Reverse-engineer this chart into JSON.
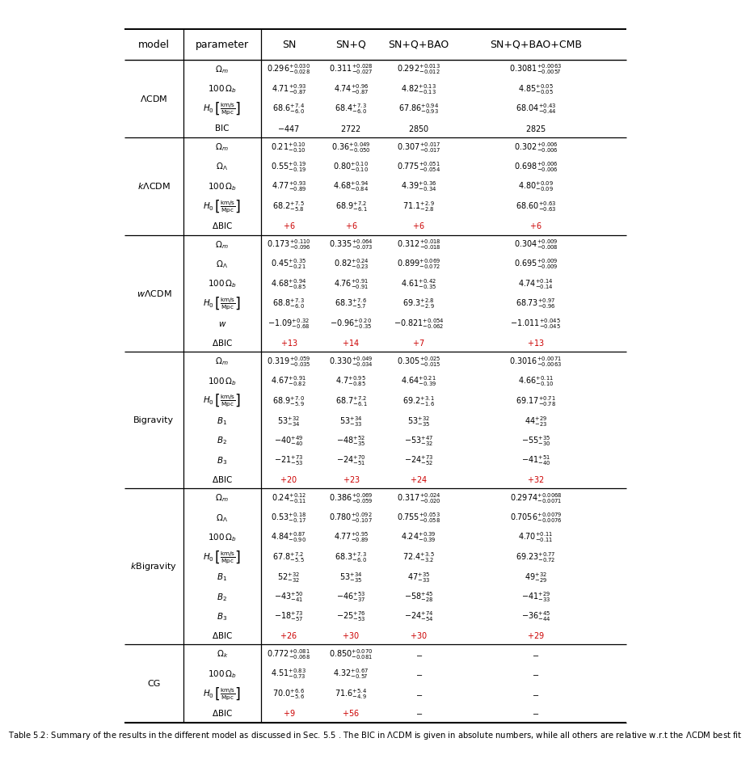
{
  "col_headers": [
    "model",
    "parameter",
    "SN",
    "SN+Q",
    "SN+Q+BAO",
    "SN+Q+BAO+CMB"
  ],
  "sections": [
    {
      "model": "$\\Lambda$CDM",
      "rows": [
        {
          "param": "$\\Omega_m$",
          "sn": "$0.296^{+0.030}_{-0.028}$",
          "snq": "$0.311^{+0.028}_{-0.027}$",
          "snqbao": "$0.292^{+0.013}_{-0.012}$",
          "snqbaocmb": "$0.3081^{+0.0063}_{-0.0057}$",
          "color": "black"
        },
        {
          "param": "$100\\,\\Omega_b$",
          "sn": "$4.71^{+0.93}_{-0.87}$",
          "snq": "$4.74^{+0.96}_{-0.87}$",
          "snqbao": "$4.82^{+0.13}_{-0.13}$",
          "snqbaocmb": "$4.85^{+0.05}_{-0.05}$",
          "color": "black"
        },
        {
          "param": "$H_0\\,\\left[\\frac{\\mathrm{km/s}}{\\mathrm{Mpc}}\\right]$",
          "sn": "$68.6^{+7.4}_{-6.0}$",
          "snq": "$68.4^{+7.3}_{-6.0}$",
          "snqbao": "$67.86^{+0.94}_{-0.93}$",
          "snqbaocmb": "$68.04^{+0.43}_{-0.44}$",
          "color": "black"
        },
        {
          "param": "BIC",
          "sn": "$-447$",
          "snq": "$2722$",
          "snqbao": "$2850$",
          "snqbaocmb": "$2825$",
          "color": "black",
          "plain": true
        }
      ]
    },
    {
      "model": "$k\\Lambda$CDM",
      "rows": [
        {
          "param": "$\\Omega_m$",
          "sn": "$0.21^{+0.10}_{-0.10}$",
          "snq": "$0.36^{+0.049}_{-0.050}$",
          "snqbao": "$0.307^{+0.017}_{-0.017}$",
          "snqbaocmb": "$0.302^{+0.006}_{-0.006}$",
          "color": "black"
        },
        {
          "param": "$\\Omega_\\Lambda$",
          "sn": "$0.55^{+0.19}_{-0.19}$",
          "snq": "$0.80^{+0.10}_{-0.10}$",
          "snqbao": "$0.775^{+0.051}_{-0.054}$",
          "snqbaocmb": "$0.698^{+0.006}_{-0.006}$",
          "color": "black"
        },
        {
          "param": "$100\\,\\Omega_b$",
          "sn": "$4.77^{+0.93}_{-0.89}$",
          "snq": "$4.68^{+0.94}_{-0.84}$",
          "snqbao": "$4.39^{+0.36}_{-0.34}$",
          "snqbaocmb": "$4.80^{+0.09}_{-0.09}$",
          "color": "black"
        },
        {
          "param": "$H_0\\,\\left[\\frac{\\mathrm{km/s}}{\\mathrm{Mpc}}\\right]$",
          "sn": "$68.2^{+7.5}_{-5.8}$",
          "snq": "$68.9^{+7.2}_{-6.1}$",
          "snqbao": "$71.1^{+2.9}_{-2.8}$",
          "snqbaocmb": "$68.60^{+0.63}_{-0.63}$",
          "color": "black"
        },
        {
          "param": "$\\Delta$BIC",
          "sn": "$+6$",
          "snq": "$+6$",
          "snqbao": "$+6$",
          "snqbaocmb": "$+6$",
          "color": "red",
          "plain": true
        }
      ]
    },
    {
      "model": "$w\\Lambda$CDM",
      "rows": [
        {
          "param": "$\\Omega_m$",
          "sn": "$0.173^{+0.110}_{-0.096}$",
          "snq": "$0.335^{+0.064}_{-0.073}$",
          "snqbao": "$0.312^{+0.018}_{-0.018}$",
          "snqbaocmb": "$0.304^{+0.009}_{-0.008}$",
          "color": "black"
        },
        {
          "param": "$\\Omega_\\Lambda$",
          "sn": "$0.45^{+0.35}_{-0.21}$",
          "snq": "$0.82^{+0.24}_{-0.23}$",
          "snqbao": "$0.899^{+0.069}_{-0.072}$",
          "snqbaocmb": "$0.695^{+0.009}_{-0.009}$",
          "color": "black"
        },
        {
          "param": "$100\\,\\Omega_b$",
          "sn": "$4.68^{+0.94}_{-0.85}$",
          "snq": "$4.76^{+0.91}_{-0.91}$",
          "snqbao": "$4.61^{+0.42}_{-0.35}$",
          "snqbaocmb": "$4.74^{+0.14}_{-0.14}$",
          "color": "black"
        },
        {
          "param": "$H_0\\,\\left[\\frac{\\mathrm{km/s}}{\\mathrm{Mpc}}\\right]$",
          "sn": "$68.8^{+7.3}_{-6.0}$",
          "snq": "$68.3^{+7.6}_{-5.7}$",
          "snqbao": "$69.3^{+2.8}_{-2.9}$",
          "snqbaocmb": "$68.73^{+0.97}_{-0.96}$",
          "color": "black"
        },
        {
          "param": "$w$",
          "sn": "$-1.09^{+0.32}_{-0.68}$",
          "snq": "$-0.96^{+0.20}_{-0.35}$",
          "snqbao": "$-0.821^{+0.054}_{-0.062}$",
          "snqbaocmb": "$-1.011^{+0.045}_{-0.045}$",
          "color": "black"
        },
        {
          "param": "$\\Delta$BIC",
          "sn": "$+13$",
          "snq": "$+14$",
          "snqbao": "$+7$",
          "snqbaocmb": "$+13$",
          "color": "red",
          "plain": true
        }
      ]
    },
    {
      "model": "Bigravity",
      "rows": [
        {
          "param": "$\\Omega_m$",
          "sn": "$0.319^{+0.059}_{-0.035}$",
          "snq": "$0.330^{+0.049}_{-0.034}$",
          "snqbao": "$0.305^{+0.025}_{-0.015}$",
          "snqbaocmb": "$0.3016^{+0.0071}_{-0.0063}$",
          "color": "black"
        },
        {
          "param": "$100\\,\\Omega_b$",
          "sn": "$4.67^{+0.91}_{-0.82}$",
          "snq": "$4.7^{+0.95}_{-0.85}$",
          "snqbao": "$4.64^{+0.21}_{-0.39}$",
          "snqbaocmb": "$4.66^{+0.11}_{-0.10}$",
          "color": "black"
        },
        {
          "param": "$H_0\\,\\left[\\frac{\\mathrm{km/s}}{\\mathrm{Mpc}}\\right]$",
          "sn": "$68.9^{+7.0}_{-5.9}$",
          "snq": "$68.7^{+7.2}_{-6.1}$",
          "snqbao": "$69.2^{+3.1}_{-1.6}$",
          "snqbaocmb": "$69.17^{+0.71}_{-0.78}$",
          "color": "black"
        },
        {
          "param": "$B_1$",
          "sn": "$53^{+32}_{-34}$",
          "snq": "$53^{+34}_{-33}$",
          "snqbao": "$53^{+32}_{-35}$",
          "snqbaocmb": "$44^{+29}_{-23}$",
          "color": "black"
        },
        {
          "param": "$B_2$",
          "sn": "$-40^{+49}_{-40}$",
          "snq": "$-48^{+52}_{-35}$",
          "snqbao": "$-53^{+47}_{-32}$",
          "snqbaocmb": "$-55^{+35}_{-30}$",
          "color": "black"
        },
        {
          "param": "$B_3$",
          "sn": "$-21^{+73}_{-53}$",
          "snq": "$-24^{+70}_{-51}$",
          "snqbao": "$-24^{+73}_{-52}$",
          "snqbaocmb": "$-41^{+51}_{-40}$",
          "color": "black"
        },
        {
          "param": "$\\Delta$BIC",
          "sn": "$+20$",
          "snq": "$+23$",
          "snqbao": "$+24$",
          "snqbaocmb": "$+32$",
          "color": "red",
          "plain": true
        }
      ]
    },
    {
      "model": "$k$Bigravity",
      "rows": [
        {
          "param": "$\\Omega_m$",
          "sn": "$0.24^{+0.12}_{-0.11}$",
          "snq": "$0.386^{+0.069}_{-0.059}$",
          "snqbao": "$0.317^{+0.024}_{-0.020}$",
          "snqbaocmb": "$0.2974^{+0.0068}_{-0.0071}$",
          "color": "black"
        },
        {
          "param": "$\\Omega_\\Lambda$",
          "sn": "$0.53^{+0.18}_{-0.17}$",
          "snq": "$0.780^{+0.092}_{-0.107}$",
          "snqbao": "$0.755^{+0.053}_{-0.058}$",
          "snqbaocmb": "$0.7056^{+0.0079}_{-0.0076}$",
          "color": "black"
        },
        {
          "param": "$100\\,\\Omega_b$",
          "sn": "$4.84^{+0.87}_{-0.90}$",
          "snq": "$4.77^{+0.95}_{-0.89}$",
          "snqbao": "$4.24^{+0.39}_{-0.39}$",
          "snqbaocmb": "$4.70^{+0.11}_{-0.11}$",
          "color": "black"
        },
        {
          "param": "$H_0\\,\\left[\\frac{\\mathrm{km/s}}{\\mathrm{Mpc}}\\right]$",
          "sn": "$67.8^{+7.2}_{-5.5}$",
          "snq": "$68.3^{+7.3}_{-6.0}$",
          "snqbao": "$72.4^{+3.5}_{-3.2}$",
          "snqbaocmb": "$69.23^{+0.77}_{-0.72}$",
          "color": "black"
        },
        {
          "param": "$B_1$",
          "sn": "$52^{+32}_{-32}$",
          "snq": "$53^{+34}_{-35}$",
          "snqbao": "$47^{+35}_{-33}$",
          "snqbaocmb": "$49^{+32}_{-29}$",
          "color": "black"
        },
        {
          "param": "$B_2$",
          "sn": "$-43^{+50}_{-41}$",
          "snq": "$-46^{+53}_{-37}$",
          "snqbao": "$-58^{+45}_{-28}$",
          "snqbaocmb": "$-41^{+29}_{-33}$",
          "color": "black"
        },
        {
          "param": "$B_3$",
          "sn": "$-18^{+73}_{-57}$",
          "snq": "$-25^{+76}_{-53}$",
          "snqbao": "$-24^{+74}_{-54}$",
          "snqbaocmb": "$-36^{+45}_{-44}$",
          "color": "black"
        },
        {
          "param": "$\\Delta$BIC",
          "sn": "$+26$",
          "snq": "$+30$",
          "snqbao": "$+30$",
          "snqbaocmb": "$+29$",
          "color": "red",
          "plain": true
        }
      ]
    },
    {
      "model": "CG",
      "rows": [
        {
          "param": "$\\Omega_k$",
          "sn": "$0.772^{+0.081}_{-0.068}$",
          "snq": "$0.850^{+0.070}_{-0.081}$",
          "snqbao": "$-$",
          "snqbaocmb": "$-$",
          "color": "black"
        },
        {
          "param": "$100\\,\\Omega_b$",
          "sn": "$4.51^{+0.83}_{-0.73}$",
          "snq": "$4.32^{+0.67}_{-0.57}$",
          "snqbao": "$-$",
          "snqbaocmb": "$-$",
          "color": "black"
        },
        {
          "param": "$H_0\\,\\left[\\frac{\\mathrm{km/s}}{\\mathrm{Mpc}}\\right]$",
          "sn": "$70.0^{+6.6}_{-5.6}$",
          "snq": "$71.6^{+5.4}_{-4.9}$",
          "snqbao": "$-$",
          "snqbaocmb": "$-$",
          "color": "black"
        },
        {
          "param": "$\\Delta$BIC",
          "sn": "$+9$",
          "snq": "$+56$",
          "snqbao": "$-$",
          "snqbaocmb": "$-$",
          "color": "red_dash",
          "plain": true
        }
      ]
    }
  ],
  "caption": "Table 5.2: Summary of the results in the different model as discussed in Sec. 5.5 . The BIC in $\\Lambda$CDM is given in absolute numbers, while all others are relative w.r.t the $\\Lambda$CDM best fit"
}
